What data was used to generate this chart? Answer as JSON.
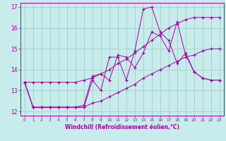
{
  "xlabel": "Windchill (Refroidissement éolien,°C)",
  "xlim": [
    -0.5,
    23.5
  ],
  "ylim": [
    11.8,
    17.2
  ],
  "yticks": [
    12,
    13,
    14,
    15,
    16,
    17
  ],
  "xticks": [
    0,
    1,
    2,
    3,
    4,
    5,
    6,
    7,
    8,
    9,
    10,
    11,
    12,
    13,
    14,
    15,
    16,
    17,
    18,
    19,
    20,
    21,
    22,
    23
  ],
  "bg_color": "#c8ecec",
  "grid_color": "#9dcfcf",
  "line_color": "#aa00aa",
  "series": [
    {
      "x": [
        0,
        1,
        2,
        3,
        4,
        5,
        6,
        7,
        8,
        9,
        10,
        11,
        12,
        13,
        14,
        15,
        16,
        17,
        18,
        19,
        20,
        21,
        22,
        23
      ],
      "y": [
        13.4,
        13.4,
        13.4,
        13.4,
        13.4,
        13.4,
        13.4,
        13.5,
        13.6,
        13.8,
        14.0,
        14.3,
        14.5,
        14.8,
        15.1,
        15.4,
        15.7,
        16.0,
        16.2,
        16.4,
        16.5,
        16.5,
        16.5,
        16.5
      ]
    },
    {
      "x": [
        0,
        1,
        2,
        3,
        4,
        5,
        6,
        7,
        8,
        9,
        10,
        11,
        12,
        13,
        14,
        15,
        16,
        17,
        18,
        19,
        20,
        21,
        22,
        23
      ],
      "y": [
        13.4,
        12.2,
        12.2,
        12.2,
        12.2,
        12.2,
        12.2,
        12.2,
        13.5,
        13.0,
        14.6,
        14.6,
        13.5,
        14.9,
        16.9,
        17.0,
        15.8,
        15.4,
        14.3,
        14.8,
        13.9,
        13.6,
        13.5,
        13.5
      ]
    },
    {
      "x": [
        0,
        1,
        2,
        3,
        4,
        5,
        6,
        7,
        8,
        9,
        10,
        11,
        12,
        13,
        14,
        15,
        16,
        17,
        18,
        19,
        20,
        21,
        22,
        23
      ],
      "y": [
        13.4,
        12.2,
        12.2,
        12.2,
        12.2,
        12.2,
        12.2,
        12.3,
        13.7,
        13.8,
        13.5,
        14.7,
        14.6,
        14.1,
        14.8,
        15.8,
        15.6,
        14.9,
        16.3,
        14.7,
        13.9,
        13.6,
        13.5,
        13.5
      ]
    },
    {
      "x": [
        0,
        1,
        2,
        3,
        4,
        5,
        6,
        7,
        8,
        9,
        10,
        11,
        12,
        13,
        14,
        15,
        16,
        17,
        18,
        19,
        20,
        21,
        22,
        23
      ],
      "y": [
        13.4,
        12.2,
        12.2,
        12.2,
        12.2,
        12.2,
        12.2,
        12.2,
        12.4,
        12.5,
        12.7,
        12.9,
        13.1,
        13.3,
        13.6,
        13.8,
        14.0,
        14.2,
        14.4,
        14.6,
        14.7,
        14.9,
        15.0,
        15.0
      ]
    }
  ]
}
